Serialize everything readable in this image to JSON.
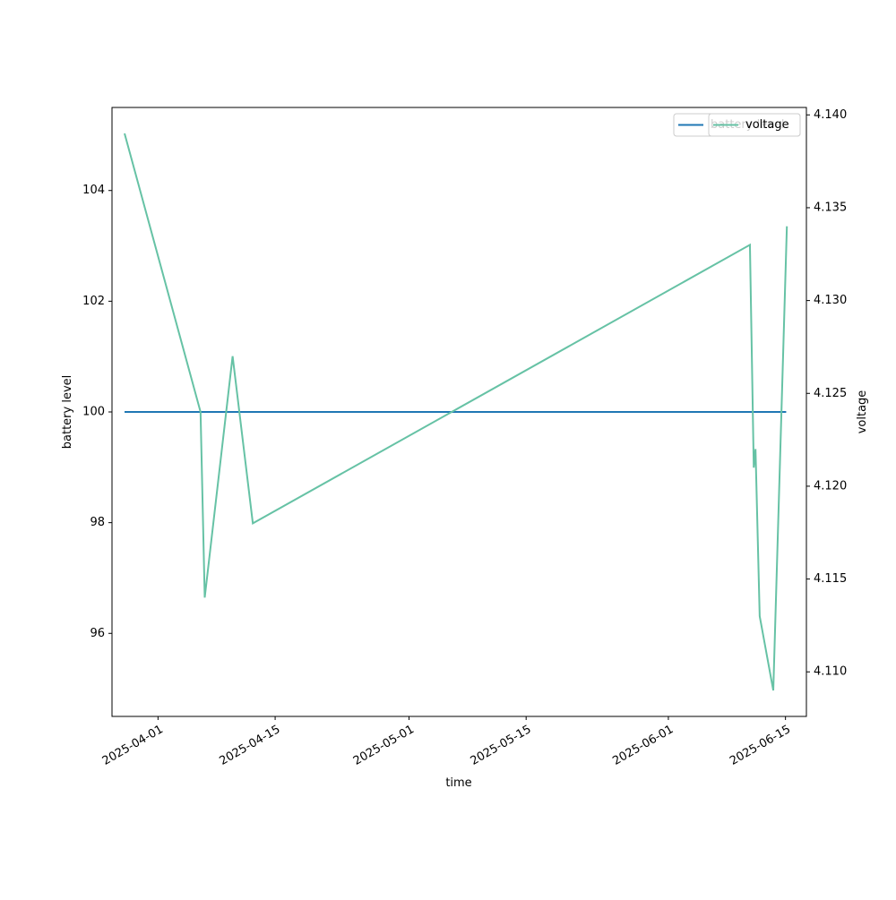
{
  "chart_data": {
    "type": "line",
    "xlabel": "time",
    "x_ticks": [
      "2025-04-01",
      "2025-04-15",
      "2025-05-01",
      "2025-05-15",
      "2025-06-01",
      "2025-06-15"
    ],
    "x_range": [
      "2025-03-26 12:00",
      "2025-06-17 12:00"
    ],
    "y_left": {
      "label": "battery level",
      "ticks": [
        "96",
        "98",
        "100",
        "102",
        "104"
      ],
      "range": [
        94.5,
        105.5
      ]
    },
    "y_right": {
      "label": "voltage",
      "ticks": [
        "4.110",
        "4.115",
        "4.120",
        "4.125",
        "4.130",
        "4.135",
        "4.140"
      ],
      "range": [
        4.1076,
        4.1404
      ]
    },
    "grid": false,
    "series": [
      {
        "name": "battery level",
        "axis": "left",
        "color": "#1f77b4",
        "points": [
          {
            "x": "2025-03-28 00:00",
            "y": 100
          },
          {
            "x": "2025-06-15 02:00",
            "y": 100
          }
        ]
      },
      {
        "name": "voltage",
        "axis": "right",
        "color": "#66c2a5",
        "points": [
          {
            "x": "2025-03-28 00:00",
            "y": 4.139
          },
          {
            "x": "2025-04-06 02:00",
            "y": 4.124
          },
          {
            "x": "2025-04-06 14:00",
            "y": 4.114
          },
          {
            "x": "2025-04-09 22:00",
            "y": 4.127
          },
          {
            "x": "2025-04-12 08:00",
            "y": 4.118
          },
          {
            "x": "2025-06-10 18:00",
            "y": 4.133
          },
          {
            "x": "2025-06-11 05:00",
            "y": 4.121
          },
          {
            "x": "2025-06-11 10:00",
            "y": 4.122
          },
          {
            "x": "2025-06-11 22:00",
            "y": 4.113
          },
          {
            "x": "2025-06-13 13:00",
            "y": 4.109
          },
          {
            "x": "2025-06-15 04:00",
            "y": 4.134
          }
        ]
      }
    ],
    "legends": [
      {
        "placement": "upper right",
        "entries": [
          "battery level"
        ]
      },
      {
        "placement": "upper right",
        "entries": [
          "voltage"
        ]
      }
    ]
  }
}
